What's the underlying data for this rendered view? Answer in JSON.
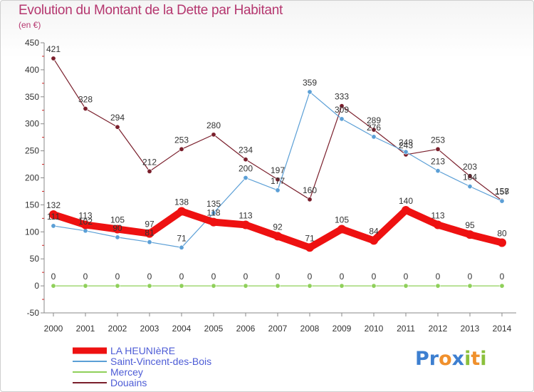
{
  "title": "Evolution du Montant de la Dette par Habitant",
  "unit": "(en €)",
  "brand": {
    "text": "Proxiti"
  },
  "colors": {
    "title": "#b5376f",
    "legend_text": "#4d5cd6"
  },
  "chart_data": {
    "type": "line",
    "title": "Evolution du Montant de la Dette par Habitant",
    "ylabel": "(en €)",
    "xlabel": "",
    "x": [
      "2000",
      "2001",
      "2002",
      "2003",
      "2004",
      "2005",
      "2006",
      "2007",
      "2008",
      "2009",
      "2010",
      "2011",
      "2012",
      "2013",
      "2014"
    ],
    "ylim": [
      -50,
      450
    ],
    "yticks": [
      -50,
      0,
      50,
      100,
      150,
      200,
      250,
      300,
      350,
      400,
      450
    ],
    "grid": false,
    "legend": "bottom-left",
    "series": [
      {
        "name": "LA HEUNIèRE",
        "color": "#ee1111",
        "width": 10,
        "values": [
          132,
          113,
          105,
          97,
          138,
          118,
          113,
          92,
          71,
          105,
          84,
          140,
          113,
          95,
          80
        ]
      },
      {
        "name": "Saint-Vincent-des-Bois",
        "color": "#5b9fd6",
        "width": 1.2,
        "values": [
          111,
          102,
          90,
          81,
          71,
          135,
          200,
          177,
          359,
          309,
          276,
          248,
          213,
          184,
          157
        ]
      },
      {
        "name": "Mercey",
        "color": "#8fd05a",
        "width": 1.2,
        "values": [
          0,
          0,
          0,
          0,
          0,
          0,
          0,
          0,
          0,
          0,
          0,
          0,
          0,
          0,
          0
        ]
      },
      {
        "name": "Douains",
        "color": "#7a1f2c",
        "width": 1.2,
        "values": [
          421,
          328,
          294,
          212,
          253,
          280,
          234,
          197,
          160,
          333,
          289,
          243,
          253,
          203,
          158
        ]
      }
    ]
  }
}
